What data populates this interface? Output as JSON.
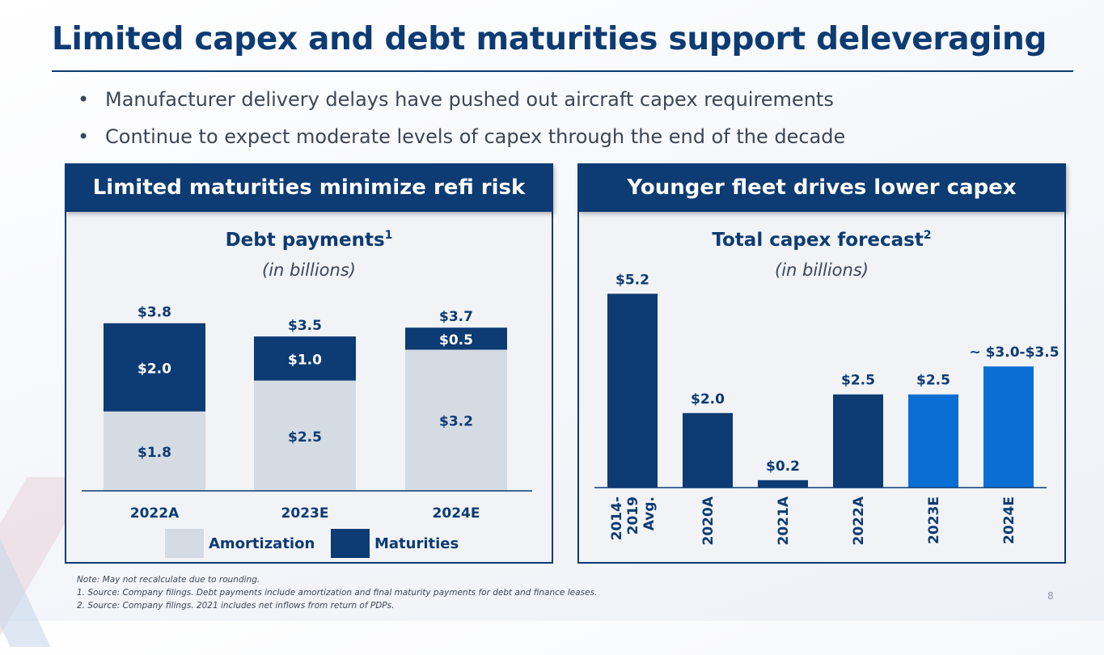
{
  "slide": {
    "title": "Limited capex and debt maturities support deleveraging",
    "bullets": [
      "Manufacturer delivery delays have pushed out aircraft capex requirements",
      "Continue to expect moderate levels of capex through the end of the decade"
    ],
    "bullet_symbol": "•",
    "page_number": "8"
  },
  "panels": {
    "left_header": "Limited maturities minimize refi risk",
    "right_header": "Younger fleet drives lower capex"
  },
  "notes": [
    "Note:  May not recalculate due to rounding.",
    "1. Source: Company filings. Debt payments include amortization and final maturity payments for debt and finance leases.",
    "2. Source: Company filings. 2021 includes net inflows from return of PDPs."
  ],
  "colors": {
    "navy": "#0d3b73",
    "bright_blue": "#0a6fd4",
    "amortization_gray": "#d5dbe3",
    "text": "#3c4656"
  },
  "chart_data": [
    {
      "type": "bar",
      "stacked": true,
      "title": "Debt payments",
      "title_footnote": "1",
      "subtitle": "(in billions)",
      "categories": [
        "2022A",
        "2023E",
        "2024E"
      ],
      "series": [
        {
          "name": "Amortization",
          "values": [
            1.8,
            2.5,
            3.2
          ],
          "labels": [
            "$1.8",
            "$2.5",
            "$3.2"
          ],
          "color": "#d5dbe3"
        },
        {
          "name": "Maturities",
          "values": [
            2.0,
            1.0,
            0.5
          ],
          "labels": [
            "$2.0",
            "$1.0",
            "$0.5"
          ],
          "color": "#0d3b73"
        }
      ],
      "totals": [
        3.8,
        3.5,
        3.7
      ],
      "total_labels": [
        "$3.8",
        "$3.5",
        "$3.7"
      ],
      "legend": [
        "Amortization",
        "Maturities"
      ],
      "ylim": [
        0,
        6.6
      ]
    },
    {
      "type": "bar",
      "title": "Total capex forecast",
      "title_footnote": "2",
      "subtitle": "(in billions)",
      "categories": [
        "2014-2019 Avg.",
        "2020A",
        "2021A",
        "2022A",
        "2023E",
        "2024E"
      ],
      "category_lines": [
        [
          "2014-",
          "2019",
          "Avg."
        ],
        [
          "2020A"
        ],
        [
          "2021A"
        ],
        [
          "2022A"
        ],
        [
          "2023E"
        ],
        [
          "2024E"
        ]
      ],
      "values": [
        5.2,
        2.0,
        0.2,
        2.5,
        2.5,
        3.25
      ],
      "labels": [
        "$5.2",
        "$2.0",
        "$0.2",
        "$2.5",
        "$2.5",
        "~ $3.0-$3.5"
      ],
      "colors": [
        "#0d3b73",
        "#0d3b73",
        "#0d3b73",
        "#0d3b73",
        "#0a6fd4",
        "#0a6fd4"
      ],
      "ylim": [
        0,
        5.9
      ]
    }
  ]
}
